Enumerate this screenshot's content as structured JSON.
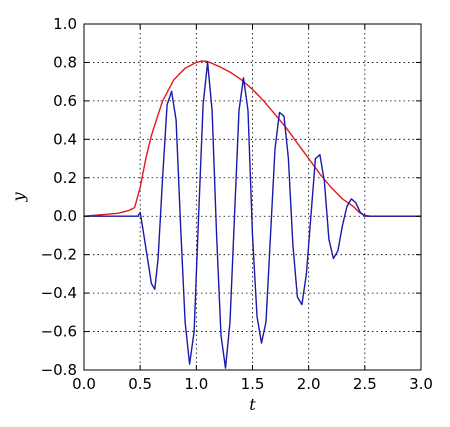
{
  "chart_data": {
    "type": "line",
    "title": "",
    "xlabel": "t",
    "ylabel": "y",
    "xlim": [
      0.0,
      3.0
    ],
    "ylim": [
      -0.8,
      1.0
    ],
    "xticks": [
      0.0,
      0.5,
      1.0,
      1.5,
      2.0,
      2.5,
      3.0
    ],
    "xtick_labels": [
      "0.0",
      "0.5",
      "1.0",
      "1.5",
      "2.0",
      "2.5",
      "3.0"
    ],
    "yticks": [
      -0.8,
      -0.6,
      -0.4,
      -0.2,
      0.0,
      0.2,
      0.4,
      0.6,
      0.8,
      1.0
    ],
    "ytick_labels": [
      "−0.8",
      "−0.6",
      "−0.4",
      "−0.2",
      "0.0",
      "0.2",
      "0.4",
      "0.6",
      "0.8",
      "1.0"
    ],
    "grid": true,
    "legend": "none",
    "series": [
      {
        "color": "#e31a1c",
        "x": [
          0.0,
          0.2,
          0.3,
          0.4,
          0.45,
          0.5,
          0.55,
          0.6,
          0.7,
          0.8,
          0.9,
          1.0,
          1.05,
          1.1,
          1.2,
          1.3,
          1.4,
          1.5,
          1.6,
          1.7,
          1.8,
          1.9,
          2.0,
          2.1,
          2.2,
          2.3,
          2.4,
          2.45,
          2.5,
          2.55,
          2.6,
          2.8,
          3.0
        ],
        "y": [
          0.0,
          0.01,
          0.015,
          0.03,
          0.045,
          0.15,
          0.3,
          0.42,
          0.6,
          0.71,
          0.77,
          0.8,
          0.808,
          0.805,
          0.78,
          0.75,
          0.71,
          0.66,
          0.6,
          0.53,
          0.46,
          0.38,
          0.3,
          0.22,
          0.15,
          0.09,
          0.05,
          0.02,
          0.005,
          0.0,
          0.0,
          0.0,
          0.0
        ]
      },
      {
        "color": "#1a1aab",
        "x": [
          0.0,
          0.45,
          0.48,
          0.5,
          0.52,
          0.56,
          0.6,
          0.63,
          0.66,
          0.7,
          0.74,
          0.78,
          0.82,
          0.86,
          0.9,
          0.94,
          0.98,
          1.02,
          1.06,
          1.1,
          1.14,
          1.18,
          1.22,
          1.26,
          1.3,
          1.34,
          1.38,
          1.42,
          1.46,
          1.5,
          1.54,
          1.58,
          1.62,
          1.66,
          1.7,
          1.74,
          1.78,
          1.82,
          1.86,
          1.9,
          1.94,
          1.98,
          2.02,
          2.06,
          2.1,
          2.14,
          2.18,
          2.22,
          2.26,
          2.3,
          2.34,
          2.38,
          2.42,
          2.46,
          2.5,
          2.55,
          2.6,
          2.8,
          3.0
        ],
        "y": [
          0.0,
          0.0,
          0.0,
          0.02,
          -0.05,
          -0.2,
          -0.35,
          -0.38,
          -0.22,
          0.2,
          0.58,
          0.65,
          0.5,
          -0.05,
          -0.55,
          -0.77,
          -0.6,
          0.0,
          0.58,
          0.8,
          0.55,
          -0.1,
          -0.62,
          -0.79,
          -0.55,
          0.0,
          0.55,
          0.72,
          0.55,
          -0.1,
          -0.52,
          -0.66,
          -0.55,
          -0.1,
          0.35,
          0.54,
          0.52,
          0.3,
          -0.15,
          -0.42,
          -0.46,
          -0.3,
          0.0,
          0.3,
          0.32,
          0.18,
          -0.12,
          -0.22,
          -0.18,
          -0.05,
          0.05,
          0.09,
          0.07,
          0.02,
          0.0,
          0.0,
          0.0,
          0.0,
          0.0
        ]
      }
    ]
  }
}
